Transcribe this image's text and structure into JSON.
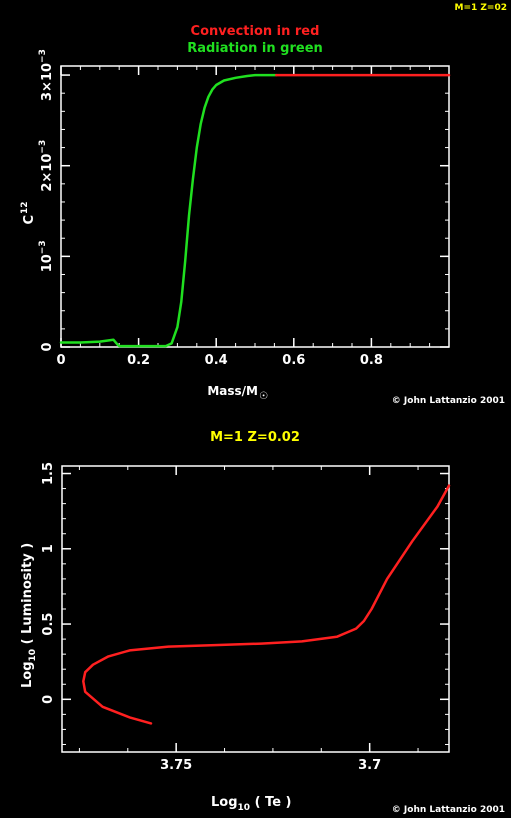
{
  "corner_tag": "M=1 Z=02",
  "credits": {
    "top": "© John Lattanzio 2001",
    "bottom": "© John Lattanzio 2001"
  },
  "colors": {
    "background": "#000000",
    "axes": "#ffffff",
    "convection": "#ff2020",
    "radiation": "#20e020",
    "title": "#ffff00"
  },
  "chart_data": [
    {
      "type": "line",
      "legend": {
        "convection": "Convection in red",
        "radiation": "Radiation in green"
      },
      "xlabel": "Mass/M",
      "xlabel_symbol": "☉",
      "ylabel": "C",
      "ylabel_sup": "12",
      "xlim": [
        0,
        1.0
      ],
      "ylim": [
        0,
        0.0031
      ],
      "xticks": [
        {
          "v": 0,
          "t": "0"
        },
        {
          "v": 0.2,
          "t": "0.2"
        },
        {
          "v": 0.4,
          "t": "0.4"
        },
        {
          "v": 0.6,
          "t": "0.6"
        },
        {
          "v": 0.8,
          "t": "0.8"
        }
      ],
      "yticks": [
        {
          "v": 0,
          "t": "0",
          "sup": ""
        },
        {
          "v": 0.001,
          "t": "10",
          "sup": "−3"
        },
        {
          "v": 0.002,
          "t": "2×10",
          "sup": "−3"
        },
        {
          "v": 0.003,
          "t": "3×10",
          "sup": "−3"
        }
      ],
      "series": [
        {
          "zone": "radiation",
          "x": [
            0,
            0.05,
            0.1,
            0.135,
            0.145,
            0.15,
            0.2,
            0.25,
            0.27,
            0.285,
            0.3,
            0.31,
            0.32,
            0.33,
            0.34,
            0.35,
            0.36,
            0.37,
            0.38,
            0.39,
            0.4,
            0.42,
            0.45,
            0.48,
            0.5,
            0.53,
            0.555
          ],
          "y": [
            5e-05,
            5e-05,
            6e-05,
            8e-05,
            3e-05,
            1e-05,
            1e-05,
            1e-05,
            1e-05,
            4e-05,
            0.00022,
            0.0005,
            0.00095,
            0.00145,
            0.00185,
            0.0022,
            0.00246,
            0.00264,
            0.00276,
            0.00284,
            0.00289,
            0.00294,
            0.00297,
            0.00299,
            0.003,
            0.003,
            0.003
          ]
        },
        {
          "zone": "convection",
          "x": [
            0.555,
            0.7,
            0.85,
            1.0
          ],
          "y": [
            0.003,
            0.003,
            0.003,
            0.003
          ]
        }
      ]
    },
    {
      "type": "line",
      "title": "M=1  Z=0.02",
      "xlabel": "Log",
      "xlabel_sub": "10",
      "xlabel_tail": " ( Te )",
      "ylabel": "Log",
      "ylabel_sub": "10",
      "ylabel_tail": " ( Luminosity )",
      "xlim": [
        3.7795,
        3.6795
      ],
      "ylim": [
        -0.35,
        1.55
      ],
      "xticks": [
        {
          "v": 3.75,
          "t": "3.75"
        },
        {
          "v": 3.7,
          "t": "3.7"
        }
      ],
      "yticks": [
        {
          "v": 0,
          "t": "0"
        },
        {
          "v": 0.5,
          "t": "0.5"
        },
        {
          "v": 1,
          "t": "1"
        },
        {
          "v": 1.5,
          "t": "1.5"
        }
      ],
      "series": [
        {
          "zone": "track",
          "x": [
            3.7565,
            3.762,
            3.769,
            3.7735,
            3.774,
            3.7735,
            3.7715,
            3.7675,
            3.762,
            3.752,
            3.74,
            3.728,
            3.7175,
            3.7085,
            3.7035,
            3.7015,
            3.6995,
            3.6955,
            3.689,
            3.6825,
            3.6795
          ],
          "y": [
            -0.16,
            -0.12,
            -0.05,
            0.05,
            0.12,
            0.18,
            0.23,
            0.285,
            0.325,
            0.35,
            0.36,
            0.37,
            0.385,
            0.415,
            0.47,
            0.52,
            0.6,
            0.8,
            1.05,
            1.28,
            1.42
          ]
        }
      ]
    }
  ]
}
